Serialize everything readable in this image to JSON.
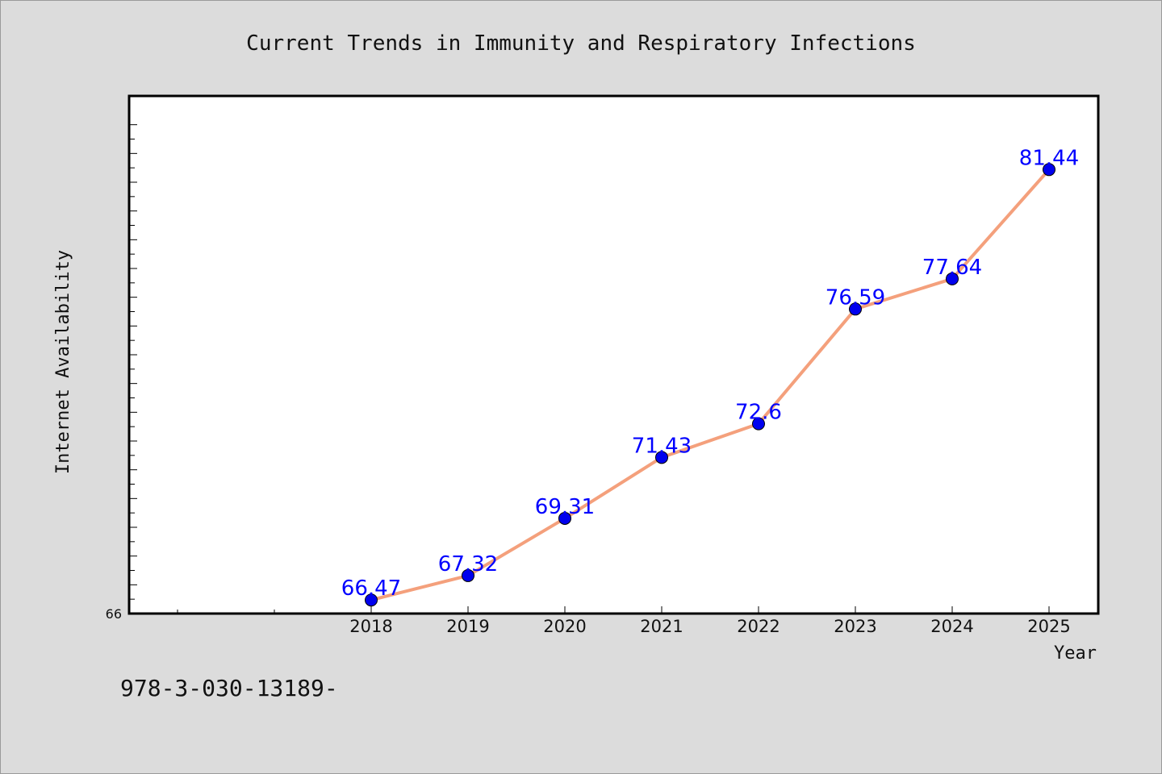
{
  "chart_data": {
    "type": "line",
    "title": "Current Trends in Immunity and Respiratory Infections",
    "xlabel": "Year",
    "ylabel": "Internet Availability",
    "x": [
      "2018",
      "2019",
      "2020",
      "2021",
      "2022",
      "2023",
      "2024",
      "2025"
    ],
    "values": [
      66.47,
      67.32,
      69.31,
      71.43,
      72.6,
      76.59,
      77.64,
      81.44
    ],
    "data_labels": [
      "66.47",
      "67.32",
      "69.31",
      "71.43",
      "72.6",
      "76.59",
      "77.64",
      "81.44"
    ],
    "y_tick_label_min": "66",
    "ylim": [
      66,
      84
    ],
    "grid": false,
    "legend": "none",
    "colors": {
      "line": "#f4a07c",
      "marker": "#0000ee",
      "label": "#0000ff",
      "background": "#dcdcdc",
      "plot_background": "#ffffff"
    }
  },
  "footnote": "978-3-030-13189-"
}
